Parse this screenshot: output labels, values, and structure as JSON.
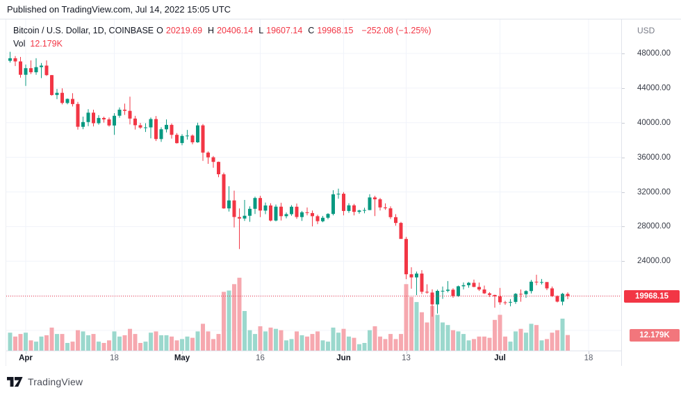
{
  "published_bar": {
    "text": "Published on TradingView.com, Jul 14, 2022 15:05 UTC"
  },
  "legend": {
    "title": "Bitcoin / U.S. Dollar, 1D, COINBASE",
    "ohlc": [
      {
        "label": "O",
        "value": "20219.69"
      },
      {
        "label": "H",
        "value": "20406.14"
      },
      {
        "label": "L",
        "value": "19607.14"
      },
      {
        "label": "C",
        "value": "19968.15"
      }
    ],
    "change": "−252.08 (−1.25%)",
    "vol_label": "Vol",
    "vol_value": "12.179K"
  },
  "price_axis": {
    "currency": "USD",
    "ticks": [
      "48000.00",
      "44000.00",
      "40000.00",
      "36000.00",
      "32000.00",
      "28000.00",
      "24000.00"
    ],
    "price_badge": "19968.15",
    "volume_badge": "12.179K"
  },
  "time_axis": {
    "ticks": [
      {
        "label": "Apr",
        "i": 3,
        "major": true
      },
      {
        "label": "18",
        "i": 20,
        "major": false
      },
      {
        "label": "May",
        "i": 33,
        "major": true
      },
      {
        "label": "16",
        "i": 48,
        "major": false
      },
      {
        "label": "Jun",
        "i": 64,
        "major": true
      },
      {
        "label": "13",
        "i": 76,
        "major": false
      },
      {
        "label": "Jul",
        "i": 94,
        "major": true
      },
      {
        "label": "18",
        "i": 111,
        "major": false
      }
    ]
  },
  "watermark": {
    "brand": "TradingView"
  },
  "colors": {
    "up": "#089981",
    "down": "#F23645",
    "vol_up": "#9BD8CD",
    "vol_down": "#F6A8AF",
    "grid": "#F0F3FA",
    "last_price_line": "#F23645",
    "badge_price_bg": "#F23645",
    "badge_vol_bg": "#F2767C",
    "text_dark": "#131722",
    "text_gray": "#787B86"
  },
  "chart_data": {
    "type": "candlestick+volume",
    "symbol": "Bitcoin / U.S. Dollar",
    "exchange": "COINBASE",
    "interval": "1D",
    "ylabel": "USD",
    "ylim": [
      14500,
      50300
    ],
    "y_gridline_prices": [
      48000,
      44000,
      40000,
      36000,
      32000,
      28000,
      24000,
      20000,
      16000
    ],
    "last_price": 19968.15,
    "last_volume_k": 12.179,
    "volume_unit": "K",
    "candles_format": [
      "date",
      "open",
      "high",
      "low",
      "close",
      "volume_k"
    ],
    "candles": [
      [
        "Mar 29",
        47150,
        48190,
        46950,
        47450,
        14
      ],
      [
        "Mar 30",
        47450,
        47700,
        46550,
        47080,
        11
      ],
      [
        "Mar 31",
        47080,
        47600,
        45200,
        45540,
        13
      ],
      [
        "Apr 1",
        45540,
        46720,
        44250,
        46300,
        14
      ],
      [
        "Apr 2",
        46300,
        47200,
        45620,
        45830,
        8
      ],
      [
        "Apr 3",
        45830,
        47450,
        45540,
        46420,
        7
      ],
      [
        "Apr 4",
        46420,
        46890,
        45150,
        46600,
        11
      ],
      [
        "Apr 5",
        46600,
        47200,
        45400,
        45500,
        12
      ],
      [
        "Apr 6",
        45500,
        45510,
        43120,
        43200,
        18
      ],
      [
        "Apr 7",
        43200,
        43900,
        42730,
        43450,
        13
      ],
      [
        "Apr 8",
        43450,
        43970,
        42110,
        42280,
        13
      ],
      [
        "Apr 9",
        42280,
        42800,
        42130,
        42750,
        6
      ],
      [
        "Apr 10",
        42750,
        43410,
        41870,
        42160,
        7
      ],
      [
        "Apr 11",
        42160,
        42400,
        39200,
        39530,
        16
      ],
      [
        "Apr 12",
        39530,
        40700,
        39250,
        40080,
        15
      ],
      [
        "Apr 13",
        40080,
        41560,
        39600,
        41160,
        12
      ],
      [
        "Apr 14",
        41160,
        41500,
        39570,
        39940,
        13
      ],
      [
        "Apr 15",
        39940,
        40870,
        39770,
        40550,
        7
      ],
      [
        "Apr 16",
        40550,
        40700,
        40010,
        40380,
        6
      ],
      [
        "Apr 17",
        40380,
        40600,
        39550,
        39680,
        8
      ],
      [
        "Apr 18",
        39680,
        41100,
        38600,
        40800,
        15
      ],
      [
        "Apr 19",
        40800,
        41760,
        40570,
        41500,
        11
      ],
      [
        "Apr 20",
        41500,
        42200,
        40900,
        41370,
        12
      ],
      [
        "Apr 21",
        41370,
        43000,
        39800,
        40480,
        17
      ],
      [
        "Apr 22",
        40480,
        40790,
        39210,
        39710,
        13
      ],
      [
        "Apr 23",
        39710,
        39980,
        39290,
        39440,
        6
      ],
      [
        "Apr 24",
        39440,
        39940,
        38930,
        39460,
        7
      ],
      [
        "Apr 25",
        39460,
        40600,
        38200,
        40420,
        14
      ],
      [
        "Apr 26",
        40420,
        40770,
        37890,
        38110,
        15
      ],
      [
        "Apr 27",
        38110,
        39470,
        37780,
        39240,
        12
      ],
      [
        "Apr 28",
        39240,
        40380,
        38880,
        39750,
        12
      ],
      [
        "Apr 29",
        39750,
        39920,
        38170,
        38600,
        11
      ],
      [
        "Apr 30",
        38600,
        38790,
        37600,
        37640,
        8
      ],
      [
        "May 1",
        37640,
        38670,
        37400,
        38470,
        9
      ],
      [
        "May 2",
        38470,
        39170,
        38050,
        38510,
        11
      ],
      [
        "May 3",
        38510,
        38650,
        37500,
        37730,
        10
      ],
      [
        "May 4",
        37730,
        40000,
        37670,
        39690,
        15
      ],
      [
        "May 5",
        39690,
        39850,
        35590,
        36550,
        21
      ],
      [
        "May 6",
        36550,
        36680,
        35250,
        36000,
        15
      ],
      [
        "May 7",
        36000,
        36150,
        34800,
        35470,
        9
      ],
      [
        "May 8",
        35470,
        35510,
        33700,
        34040,
        13
      ],
      [
        "May 9",
        34040,
        34240,
        30050,
        30100,
        46
      ],
      [
        "May 10",
        30100,
        32660,
        29730,
        31020,
        47
      ],
      [
        "May 11",
        31020,
        32150,
        27900,
        29100,
        52
      ],
      [
        "May 12",
        29100,
        30100,
        25400,
        28930,
        57
      ],
      [
        "May 13",
        28930,
        31080,
        28650,
        29250,
        31
      ],
      [
        "May 14",
        29250,
        30340,
        28550,
        30050,
        16
      ],
      [
        "May 15",
        30050,
        31460,
        29450,
        31300,
        13
      ],
      [
        "May 16",
        31300,
        31560,
        29100,
        29850,
        19
      ],
      [
        "May 17",
        29850,
        30780,
        29430,
        30440,
        15
      ],
      [
        "May 18",
        30440,
        30700,
        28600,
        28700,
        18
      ],
      [
        "May 19",
        28700,
        30550,
        28600,
        30300,
        17
      ],
      [
        "May 20",
        30300,
        30750,
        28700,
        29200,
        16
      ],
      [
        "May 21",
        29200,
        29630,
        28950,
        29430,
        8
      ],
      [
        "May 22",
        29430,
        30480,
        29250,
        30290,
        9
      ],
      [
        "May 23",
        30290,
        30650,
        28900,
        29100,
        15
      ],
      [
        "May 24",
        29100,
        29800,
        28650,
        29650,
        12
      ],
      [
        "May 25",
        29650,
        30200,
        29300,
        29560,
        11
      ],
      [
        "May 26",
        29560,
        29850,
        28020,
        29200,
        13
      ],
      [
        "May 27",
        29200,
        29380,
        28280,
        28620,
        15
      ],
      [
        "May 28",
        28620,
        29230,
        28500,
        29020,
        8
      ],
      [
        "May 29",
        29020,
        29550,
        28840,
        29460,
        7
      ],
      [
        "May 30",
        29460,
        32200,
        29300,
        31730,
        18
      ],
      [
        "May 31",
        31730,
        32380,
        31220,
        31790,
        14
      ],
      [
        "Jun 1",
        31790,
        31980,
        29300,
        29800,
        17
      ],
      [
        "Jun 2",
        29800,
        30690,
        29590,
        30450,
        11
      ],
      [
        "Jun 3",
        30450,
        30630,
        29290,
        29700,
        10
      ],
      [
        "Jun 4",
        29700,
        29950,
        29480,
        29860,
        5
      ],
      [
        "Jun 5",
        29860,
        30170,
        29540,
        29910,
        6
      ],
      [
        "Jun 6",
        29910,
        31740,
        29890,
        31370,
        16
      ],
      [
        "Jun 7",
        31370,
        31560,
        29220,
        31150,
        19
      ],
      [
        "Jun 8",
        31150,
        31310,
        29860,
        30210,
        11
      ],
      [
        "Jun 9",
        30210,
        30680,
        29930,
        30110,
        9
      ],
      [
        "Jun 10",
        30110,
        30340,
        28870,
        29090,
        13
      ],
      [
        "Jun 11",
        29090,
        29430,
        28100,
        28420,
        9
      ],
      [
        "Jun 12",
        28420,
        28540,
        26590,
        26570,
        13
      ],
      [
        "Jun 13",
        26570,
        26800,
        21930,
        22490,
        52
      ],
      [
        "Jun 14",
        22490,
        23300,
        20820,
        22130,
        42
      ],
      [
        "Jun 15",
        22130,
        22790,
        20080,
        22570,
        38
      ],
      [
        "Jun 16",
        22570,
        22970,
        20200,
        20470,
        30
      ],
      [
        "Jun 17",
        20470,
        21330,
        20250,
        20380,
        22
      ],
      [
        "Jun 18",
        20380,
        20750,
        17600,
        19010,
        35
      ],
      [
        "Jun 19",
        19010,
        20720,
        17960,
        20570,
        28
      ],
      [
        "Jun 20",
        20570,
        21080,
        19650,
        20580,
        22
      ],
      [
        "Jun 21",
        20580,
        21700,
        20400,
        20710,
        20
      ],
      [
        "Jun 22",
        20710,
        20870,
        19770,
        19970,
        16
      ],
      [
        "Jun 23",
        19970,
        21180,
        19890,
        21100,
        15
      ],
      [
        "Jun 24",
        21100,
        21540,
        20740,
        21230,
        13
      ],
      [
        "Jun 25",
        21230,
        21590,
        20930,
        21500,
        8
      ],
      [
        "Jun 26",
        21500,
        21880,
        20990,
        21030,
        9
      ],
      [
        "Jun 27",
        21030,
        21530,
        20560,
        20730,
        11
      ],
      [
        "Jun 28",
        20730,
        21180,
        20210,
        20280,
        11
      ],
      [
        "Jun 29",
        20280,
        20420,
        19870,
        20100,
        10
      ],
      [
        "Jun 30",
        20100,
        20130,
        18630,
        19930,
        24
      ],
      [
        "Jul 1",
        19930,
        20910,
        18970,
        19250,
        28
      ],
      [
        "Jul 2",
        19250,
        19420,
        18960,
        19240,
        11
      ],
      [
        "Jul 3",
        19240,
        19620,
        18790,
        19300,
        7
      ],
      [
        "Jul 4",
        19300,
        20320,
        19060,
        20230,
        15
      ],
      [
        "Jul 5",
        20230,
        20730,
        19320,
        20190,
        17
      ],
      [
        "Jul 6",
        20190,
        20640,
        19760,
        20550,
        14
      ],
      [
        "Jul 7",
        20550,
        21840,
        20270,
        21630,
        21
      ],
      [
        "Jul 8",
        21630,
        22430,
        21220,
        21590,
        20
      ],
      [
        "Jul 9",
        21590,
        21940,
        21320,
        21590,
        8
      ],
      [
        "Jul 10",
        21590,
        21600,
        20650,
        20860,
        9
      ],
      [
        "Jul 11",
        20860,
        21070,
        19880,
        19960,
        14
      ],
      [
        "Jul 12",
        19960,
        20050,
        19240,
        19330,
        16
      ],
      [
        "Jul 13",
        19330,
        20340,
        18910,
        20230,
        25
      ],
      [
        "Jul 14",
        20219.69,
        20406.14,
        19607.14,
        19968.15,
        12.179
      ]
    ]
  }
}
